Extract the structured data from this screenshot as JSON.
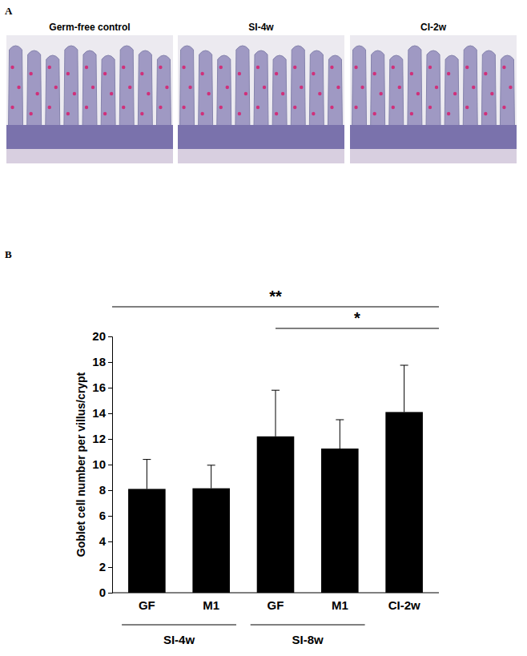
{
  "figure": {
    "panel_labels": [
      "A",
      "B"
    ],
    "images": [
      "Germ-free control",
      "SI-4w",
      "CI-2w"
    ]
  },
  "chart_data": {
    "type": "bar",
    "y_label": "Goblet cell number per villus/crypt",
    "categories": [
      "GF",
      "M1",
      "GF",
      "M1",
      "CI-2w"
    ],
    "values": [
      8.1,
      8.15,
      12.2,
      11.25,
      14.1
    ],
    "errors": [
      2.3,
      1.8,
      3.6,
      2.25,
      3.65
    ],
    "color": "#000000",
    "ylim": [
      0,
      20
    ],
    "yticks": [
      0,
      2,
      4,
      6,
      8,
      10,
      12,
      14,
      16,
      18,
      20
    ],
    "groups": [
      {
        "label": "SI-4w",
        "categories": [
          0,
          1
        ]
      },
      {
        "label": "SI-8w",
        "categories": [
          2,
          3
        ]
      }
    ],
    "annotations": [
      {
        "text": "**",
        "from": 0,
        "to": 4
      },
      {
        "text": "*",
        "from": 2,
        "to": 4
      }
    ]
  }
}
